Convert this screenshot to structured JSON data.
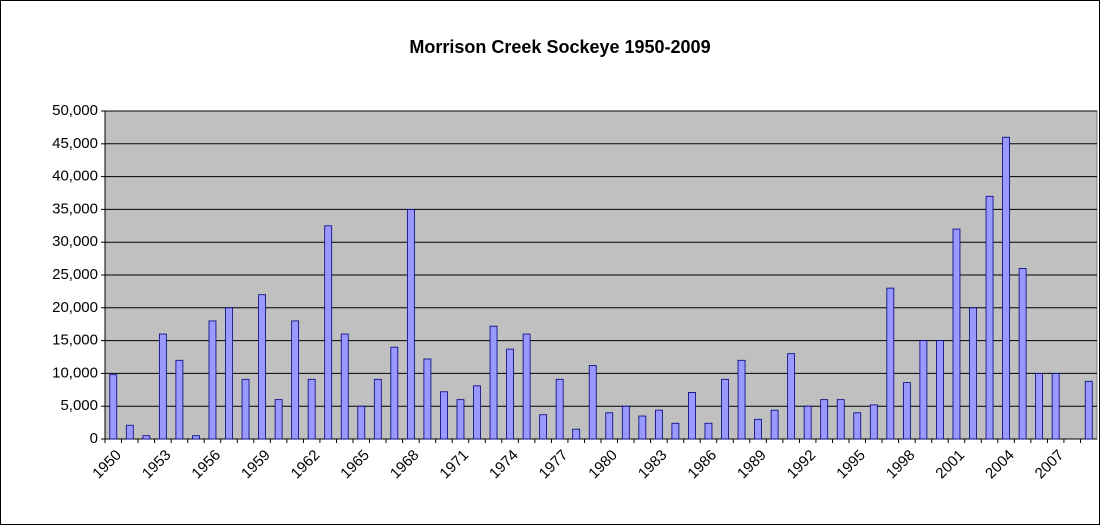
{
  "chart_data": {
    "type": "bar",
    "title": "Morrison Creek Sockeye 1950-2009",
    "categories": [
      "1950",
      null,
      null,
      "1953",
      null,
      null,
      "1956",
      null,
      null,
      "1959",
      null,
      null,
      "1962",
      null,
      null,
      "1965",
      null,
      null,
      "1968",
      null,
      null,
      "1971",
      null,
      null,
      "1974",
      null,
      null,
      "1977",
      null,
      null,
      "1980",
      null,
      null,
      "1983",
      null,
      null,
      "1986",
      null,
      null,
      "1989",
      null,
      null,
      "1992",
      null,
      null,
      "1995",
      null,
      null,
      "1998",
      null,
      null,
      "2001",
      null,
      null,
      "2004",
      null,
      null,
      "2007",
      null,
      null
    ],
    "values": [
      9800,
      2100,
      500,
      16000,
      12000,
      500,
      18000,
      20000,
      9100,
      22000,
      6000,
      18000,
      9100,
      32500,
      16000,
      5000,
      9100,
      14000,
      35000,
      12200,
      7200,
      6000,
      8100,
      17200,
      13700,
      16000,
      3700,
      9100,
      1500,
      11200,
      4000,
      5000,
      3500,
      4400,
      2400,
      7100,
      2400,
      9100,
      12000,
      3000,
      4400,
      13000,
      5000,
      6000,
      6000,
      4000,
      5200,
      23000,
      8600,
      15000,
      15000,
      32000,
      20000,
      37000,
      46000,
      26000,
      10000,
      10000,
      null,
      8800
    ],
    "color": "#9999ff",
    "ylim": [
      0,
      50000
    ],
    "yticks": [
      0,
      {
        "value": 5000,
        "label": "5,000"
      },
      {
        "value": 10000,
        "label": "10,000"
      },
      {
        "value": 15000,
        "label": "15,000"
      },
      {
        "value": 20000,
        "label": "20,000"
      },
      {
        "value": 25000,
        "label": "25,000"
      },
      {
        "value": 30000,
        "label": "30,000"
      },
      {
        "value": 35000,
        "label": "35,000"
      },
      {
        "value": 40000,
        "label": "40,000"
      },
      {
        "value": 45000,
        "label": "45,000"
      },
      {
        "value": 50000,
        "label": "50,000"
      }
    ],
    "grid": true
  }
}
